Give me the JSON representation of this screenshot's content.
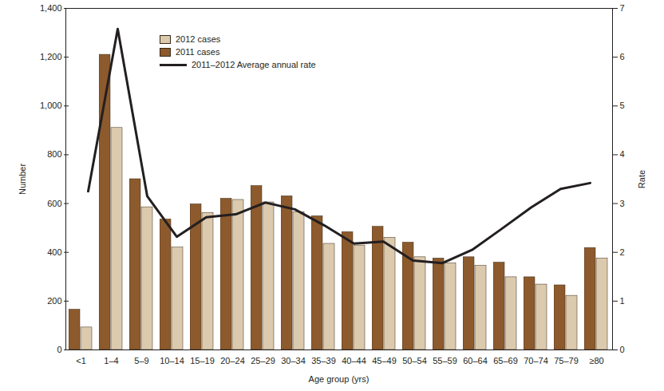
{
  "chart_data": {
    "type": "bar",
    "x_label": "Age group (yrs)",
    "y_label": "Number",
    "y2_label": "Rate",
    "categories": [
      "<1",
      "1–4",
      "5–9",
      "10–14",
      "15–19",
      "20–24",
      "25–29",
      "30–34",
      "35–39",
      "40–44",
      "45–49",
      "50–54",
      "55–59",
      "60–64",
      "65–69",
      "70–74",
      "75–79",
      "≥80"
    ],
    "series": [
      {
        "name": "2012 cases",
        "color": "#dccaae",
        "values": [
          92,
          910,
          585,
          420,
          562,
          615,
          605,
          565,
          435,
          428,
          460,
          380,
          355,
          345,
          298,
          268,
          222,
          375
        ]
      },
      {
        "name": "2011 cases",
        "color": "#8c5a2c",
        "values": [
          165,
          1210,
          700,
          535,
          597,
          620,
          672,
          630,
          548,
          483,
          505,
          440,
          375,
          380,
          358,
          298,
          265,
          418
        ]
      },
      {
        "name": "2011–2012 Average annual rate",
        "type": "line",
        "axis": "y2",
        "color": "#231f20",
        "values": [
          3.25,
          6.58,
          3.15,
          2.32,
          2.72,
          2.78,
          3.02,
          2.88,
          2.55,
          2.18,
          2.22,
          1.83,
          1.78,
          2.05,
          2.48,
          2.92,
          3.3,
          3.42
        ]
      }
    ],
    "ylim": [
      0,
      1400
    ],
    "yticks": [
      0,
      200,
      400,
      600,
      800,
      {
        "value": 1000,
        "label": "1,000"
      },
      {
        "value": 1200,
        "label": "1,200"
      },
      {
        "value": 1400,
        "label": "1,400"
      }
    ],
    "y2lim": [
      0,
      7
    ],
    "y2ticks": [
      0,
      1,
      2,
      3,
      4,
      5,
      6,
      7
    ],
    "legend": "upper left"
  }
}
